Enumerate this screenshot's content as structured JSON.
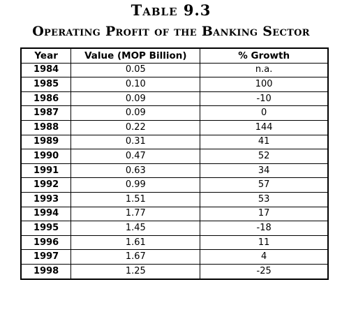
{
  "title": "Table 9.3",
  "subtitle": "Operating Profit of the Banking Sector",
  "headers": [
    "Year",
    "Value (MOP Billion)",
    "% Growth"
  ],
  "rows": [
    {
      "year": "1984",
      "value": "0.05",
      "growth": "n.a."
    },
    {
      "year": "1985",
      "value": "0.10",
      "growth": "100"
    },
    {
      "year": "1986",
      "value": "0.09",
      "growth": "-10"
    },
    {
      "year": "1987",
      "value": "0.09",
      "growth": "0"
    },
    {
      "year": "1988",
      "value": "0.22",
      "growth": "144"
    },
    {
      "year": "1989",
      "value": "0.31",
      "growth": "41"
    },
    {
      "year": "1990",
      "value": "0.47",
      "growth": "52"
    },
    {
      "year": "1991",
      "value": "0.63",
      "growth": "34"
    },
    {
      "year": "1992",
      "value": "0.99",
      "growth": "57"
    },
    {
      "year": "1993",
      "value": "1.51",
      "growth": "53"
    },
    {
      "year": "1994",
      "value": "1.77",
      "growth": "17"
    },
    {
      "year": "1995",
      "value": "1.45",
      "growth": "-18"
    },
    {
      "year": "1996",
      "value": "1.61",
      "growth": "11"
    },
    {
      "year": "1997",
      "value": "1.67",
      "growth": "4"
    },
    {
      "year": "1998",
      "value": "1.25",
      "growth": "-25"
    }
  ]
}
